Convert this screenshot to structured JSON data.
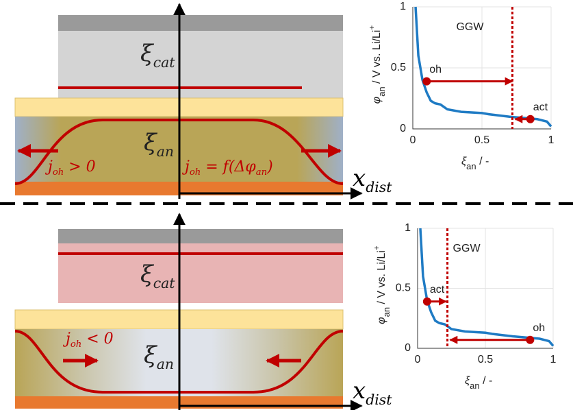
{
  "chart_data": [
    {
      "type": "line",
      "x": [
        0.02,
        0.04,
        0.07,
        0.1,
        0.13,
        0.16,
        0.2,
        0.25,
        0.35,
        0.5,
        0.55,
        0.7,
        0.8,
        0.9,
        0.97,
        1.0
      ],
      "values": [
        1.0,
        0.6,
        0.4,
        0.3,
        0.23,
        0.21,
        0.2,
        0.16,
        0.14,
        0.13,
        0.12,
        0.1,
        0.09,
        0.08,
        0.06,
        0.02
      ],
      "color": "#1f7bc4",
      "xlim": [
        0,
        1
      ],
      "xticks": [
        0,
        0.5,
        1
      ],
      "ylim": [
        0,
        1
      ],
      "yticks": [
        0,
        0.5,
        1
      ],
      "grid": true,
      "xlabel": {
        "symbol": "ξ",
        "subscript": "an",
        "unit": " / -"
      },
      "ylabel": {
        "symbol": "φ",
        "subscript": "an",
        "unit": " / V vs. Li/Li",
        "superscript": "+"
      },
      "ggw": {
        "label": "GGW",
        "x": 0.72,
        "color": "#c00000"
      },
      "arrows": [
        {
          "label": "oh",
          "x": [
            0.1,
            0.72
          ],
          "y": 0.39,
          "color": "#c00000"
        },
        {
          "label": "act",
          "x": [
            0.85,
            0.74
          ],
          "y": 0.08,
          "color": "#c00000"
        }
      ]
    },
    {
      "type": "line",
      "x": [
        0.02,
        0.04,
        0.07,
        0.1,
        0.13,
        0.16,
        0.2,
        0.25,
        0.35,
        0.5,
        0.55,
        0.7,
        0.8,
        0.9,
        0.97,
        1.0
      ],
      "values": [
        1.0,
        0.6,
        0.4,
        0.3,
        0.23,
        0.21,
        0.2,
        0.16,
        0.14,
        0.13,
        0.12,
        0.1,
        0.09,
        0.08,
        0.06,
        0.02
      ],
      "color": "#1f7bc4",
      "xlim": [
        0,
        1
      ],
      "xticks": [
        0,
        0.5,
        1
      ],
      "ylim": [
        0,
        1
      ],
      "yticks": [
        0,
        0.5,
        1
      ],
      "grid": true,
      "xlabel": {
        "symbol": "ξ",
        "subscript": "an",
        "unit": " / -"
      },
      "ylabel": {
        "symbol": "φ",
        "subscript": "an",
        "unit": " / V vs. Li/Li",
        "superscript": "+"
      },
      "ggw": {
        "label": "GGW",
        "x": 0.22,
        "color": "#c00000"
      },
      "arrows": [
        {
          "label": "act",
          "x": [
            0.07,
            0.21
          ],
          "y": 0.39,
          "color": "#c00000"
        },
        {
          "label": "oh",
          "x": [
            0.83,
            0.24
          ],
          "y": 0.07,
          "color": "#c00000"
        }
      ]
    }
  ],
  "diagram": {
    "panels": [
      {
        "labels": [
          [
            {
              "text": "ξ",
              "sub": false
            },
            {
              "text": "cat",
              "sub": true
            }
          ],
          [
            {
              "text": "ξ",
              "sub": false
            },
            {
              "text": "an",
              "sub": true
            }
          ],
          [
            {
              "text": "x",
              "sub": false
            },
            {
              "text": "dist",
              "sub": true
            }
          ],
          [
            {
              "text": "j",
              "sub": false
            },
            {
              "text": "oh",
              "sub": true
            },
            {
              "text": " > 0",
              "sub": false
            }
          ],
          [
            {
              "text": "j",
              "sub": false
            },
            {
              "text": "oh",
              "sub": true
            },
            {
              "text": " = f(Δφ",
              "sub": false
            },
            {
              "text": "an",
              "sub": true
            },
            {
              "text": ")",
              "sub": false
            }
          ]
        ]
      },
      {
        "labels": [
          [
            {
              "text": "ξ",
              "sub": false
            },
            {
              "text": "cat",
              "sub": true
            }
          ],
          [
            {
              "text": "ξ",
              "sub": false
            },
            {
              "text": "an",
              "sub": true
            }
          ],
          [
            {
              "text": "x",
              "sub": false
            },
            {
              "text": "dist",
              "sub": true
            }
          ],
          [
            {
              "text": "j",
              "sub": false
            },
            {
              "text": "oh",
              "sub": true
            },
            {
              "text": " < 0",
              "sub": false
            }
          ]
        ]
      }
    ]
  }
}
